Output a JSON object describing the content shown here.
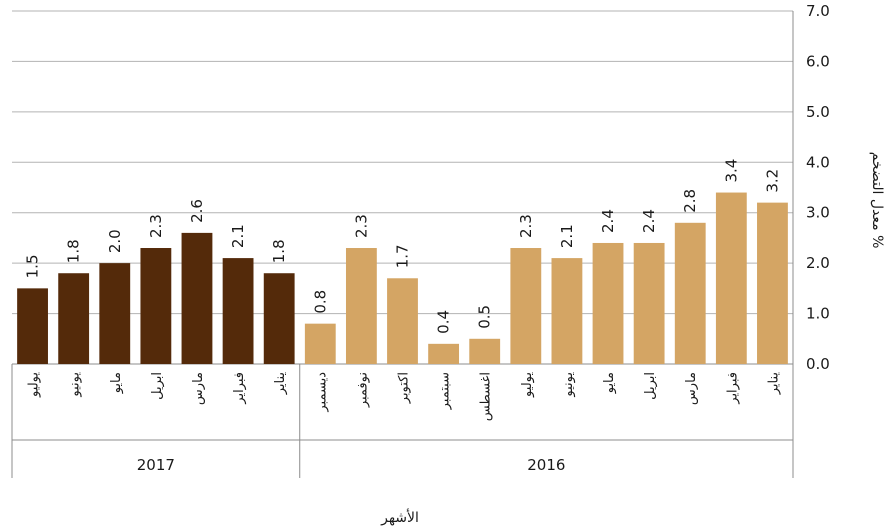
{
  "chart_data": {
    "type": "bar",
    "ylabel": "معدل التضخم %",
    "xlabel": "الأشهر",
    "ylim": [
      0,
      7
    ],
    "yticks": [
      "0.0",
      "1.0",
      "2.0",
      "3.0",
      "4.0",
      "5.0",
      "6.0",
      "7.0"
    ],
    "grid": true,
    "groups": [
      {
        "name": "2017",
        "color": "#542a0a",
        "categories": [
          "يوليو",
          "يونيو",
          "مايو",
          "ابريل",
          "مارس",
          "فبراير",
          "يناير"
        ],
        "values": [
          1.5,
          1.8,
          2.0,
          2.3,
          2.6,
          2.1,
          1.8
        ],
        "labels": [
          "1.5",
          "1.8",
          "2.0",
          "2.3",
          "2.6",
          "2.1",
          "1.8"
        ]
      },
      {
        "name": "2016",
        "color": "#d4a564",
        "categories": [
          "ديسمبر",
          "نوفمبر",
          "اكتوبر",
          "سبتمبر",
          "اغسطس",
          "يوليو",
          "يونيو",
          "مايو",
          "ابريل",
          "مارس",
          "فبراير",
          "يناير"
        ],
        "values": [
          0.8,
          2.3,
          1.7,
          0.4,
          0.5,
          2.3,
          2.1,
          2.4,
          2.4,
          2.8,
          3.4,
          3.2
        ],
        "labels": [
          "0.8",
          "2.3",
          "1.7",
          "0.4",
          "0.5",
          "2.3",
          "2.1",
          "2.4",
          "2.4",
          "2.8",
          "3.4",
          "3.2"
        ]
      }
    ]
  }
}
